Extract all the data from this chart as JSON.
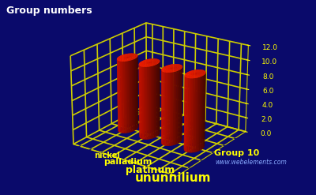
{
  "title": "Group numbers",
  "elements": [
    "nickel",
    "palladium",
    "platinum",
    "ununnilium"
  ],
  "values": [
    10,
    10,
    10,
    10
  ],
  "group_label": "Group 10",
  "website": "www.webelements.com",
  "yticks": [
    0.0,
    2.0,
    4.0,
    6.0,
    8.0,
    10.0,
    12.0
  ],
  "background_color": "#0a0a6b",
  "bar_color_top": "#ff2200",
  "bar_color_side": "#cc1100",
  "bar_color_dark": "#880000",
  "grid_color": "#cccc00",
  "label_color": "#ffff00",
  "title_color": "#ffffff",
  "website_color": "#88aaff"
}
